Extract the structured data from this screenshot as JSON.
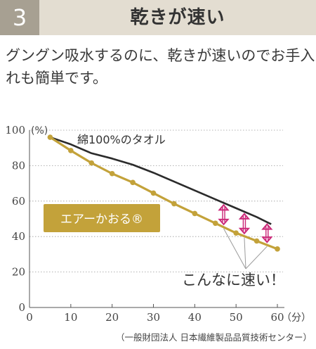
{
  "header": {
    "number": "3",
    "title": "乾きが速い",
    "colors": {
      "band": "#e3ddd1",
      "number_box": "#a7a092"
    }
  },
  "lead_text": "グングン吸水するのに、乾きが速いのでお手入れも簡単です。",
  "chart_data": {
    "type": "line",
    "xlim": [
      0,
      60
    ],
    "ylim": [
      0,
      100
    ],
    "x_ticks": [
      0,
      10,
      20,
      30,
      40,
      50,
      60
    ],
    "y_ticks": [
      0,
      20,
      40,
      60,
      80,
      100
    ],
    "x_unit": "（分）",
    "y_unit": "(%)",
    "grid": "horizontal dotted",
    "series": [
      {
        "name": "綿100%のタオル",
        "color": "#2b2b2b",
        "marker": "none",
        "x": [
          5,
          10,
          15,
          20,
          25,
          30,
          35,
          40,
          45,
          50,
          55,
          58.5
        ],
        "y": [
          96,
          92,
          87,
          84,
          80.5,
          76,
          71,
          66,
          61,
          56,
          51,
          47
        ]
      },
      {
        "name": "エアーかおる®",
        "color": "#c3a23a",
        "marker": "circle",
        "x": [
          5,
          10,
          15,
          20,
          25,
          30,
          35,
          40,
          45,
          50,
          55,
          60
        ],
        "y": [
          96,
          88.5,
          81.5,
          75.5,
          70.5,
          64.5,
          58.5,
          53,
          47.5,
          42,
          37.5,
          33
        ]
      }
    ],
    "gap_arrows_x": [
      47,
      52,
      57.5
    ],
    "gap_arrow_color": "#cc2a7a",
    "annotation": "こんなに速い！",
    "source": "（一般財団法人 日本繊維製品品質技術センター）"
  }
}
